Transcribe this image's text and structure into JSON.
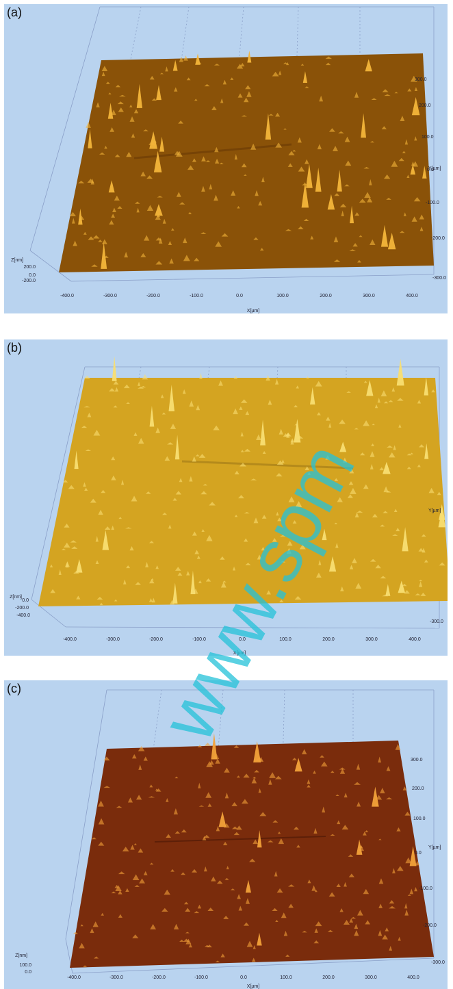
{
  "panels": [
    {
      "label": "(a)",
      "surface_color": "#8a5208",
      "peak_color": "#f3b53a",
      "x_label": "X[µm]",
      "y_label": "Y[µm]",
      "z_label": "Z[nm]",
      "x_ticks": [
        "-400.0",
        "-300.0",
        "-200.0",
        "-100.0",
        "0.0",
        "100.0",
        "200.0",
        "300.0",
        "400.0"
      ],
      "y_ticks": [
        "-300.0",
        "-200.0",
        "-100.0",
        "0.0",
        "100.0",
        "200.0",
        "300.0"
      ],
      "z_ticks": [
        "200.0",
        "0.0",
        "-200.0"
      ]
    },
    {
      "label": "(b)",
      "surface_color": "#d4a421",
      "peak_color": "#f8de72",
      "x_label": "X[µm]",
      "y_label": "Y[µm]",
      "z_label": "Z[nm]",
      "x_ticks": [
        "-400.0",
        "-300.0",
        "-200.0",
        "-100.0",
        "0.0",
        "100.0",
        "200.0",
        "300.0",
        "400.0"
      ],
      "y_ticks": [
        "-300.0"
      ],
      "z_ticks": [
        "0.0",
        "-200.0",
        "-400.0"
      ]
    },
    {
      "label": "(c)",
      "surface_color": "#7a2c0c",
      "peak_color": "#f2a23a",
      "x_label": "X[µm]",
      "y_label": "Y[µm]",
      "z_label": "Z[nm]",
      "x_ticks": [
        "-400.0",
        "-300.0",
        "-200.0",
        "-100.0",
        "0.0",
        "100.0",
        "200.0",
        "300.0",
        "400.0"
      ],
      "y_ticks": [
        "-300.0",
        "-200.0",
        "-100.0",
        "0.0",
        "100.0",
        "200.0",
        "300.0"
      ],
      "z_ticks": [
        "100.0",
        "0.0"
      ]
    }
  ],
  "watermark_text": "www.spm"
}
